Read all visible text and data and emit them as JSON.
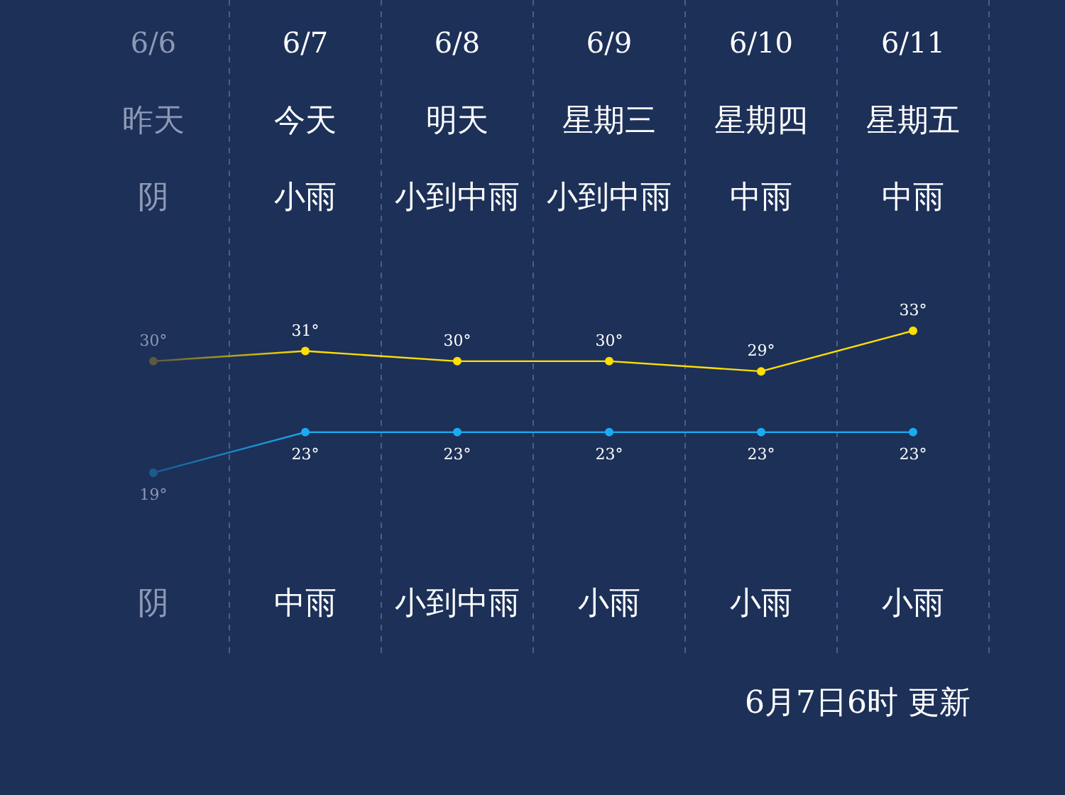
{
  "chart_data": {
    "type": "line",
    "categories": [
      "6/6",
      "6/7",
      "6/8",
      "6/9",
      "6/10",
      "6/11"
    ],
    "series": [
      {
        "color": "#ffde00",
        "colors": [
          "#5b5a3c",
          "#ffde00",
          "#ffde00",
          "#ffde00",
          "#ffde00",
          "#ffde00"
        ],
        "values": [
          30,
          31,
          30,
          30,
          29,
          33
        ],
        "value_labels": [
          "30°",
          "31°",
          "30°",
          "30°",
          "29°",
          "33°"
        ]
      },
      {
        "color": "#1aacf0",
        "colors": [
          "#1d5a8e",
          "#1aacf0",
          "#1aacf0",
          "#1aacf0",
          "#1aacf0",
          "#1aacf0"
        ],
        "values": [
          19,
          23,
          23,
          23,
          23,
          23
        ],
        "value_labels": [
          "19°",
          "23°",
          "23°",
          "23°",
          "23°",
          "23°"
        ]
      }
    ],
    "marker": "circle",
    "grid": "x",
    "annotations": [
      "昨天",
      "今天",
      "明天",
      "星期三",
      "星期四",
      "星期五",
      "阴",
      "小雨",
      "小到中雨",
      "小到中雨",
      "中雨",
      "中雨",
      "阴",
      "中雨",
      "小到中雨",
      "小雨",
      "小雨",
      "小雨",
      "6月7日6时 更新"
    ]
  }
}
